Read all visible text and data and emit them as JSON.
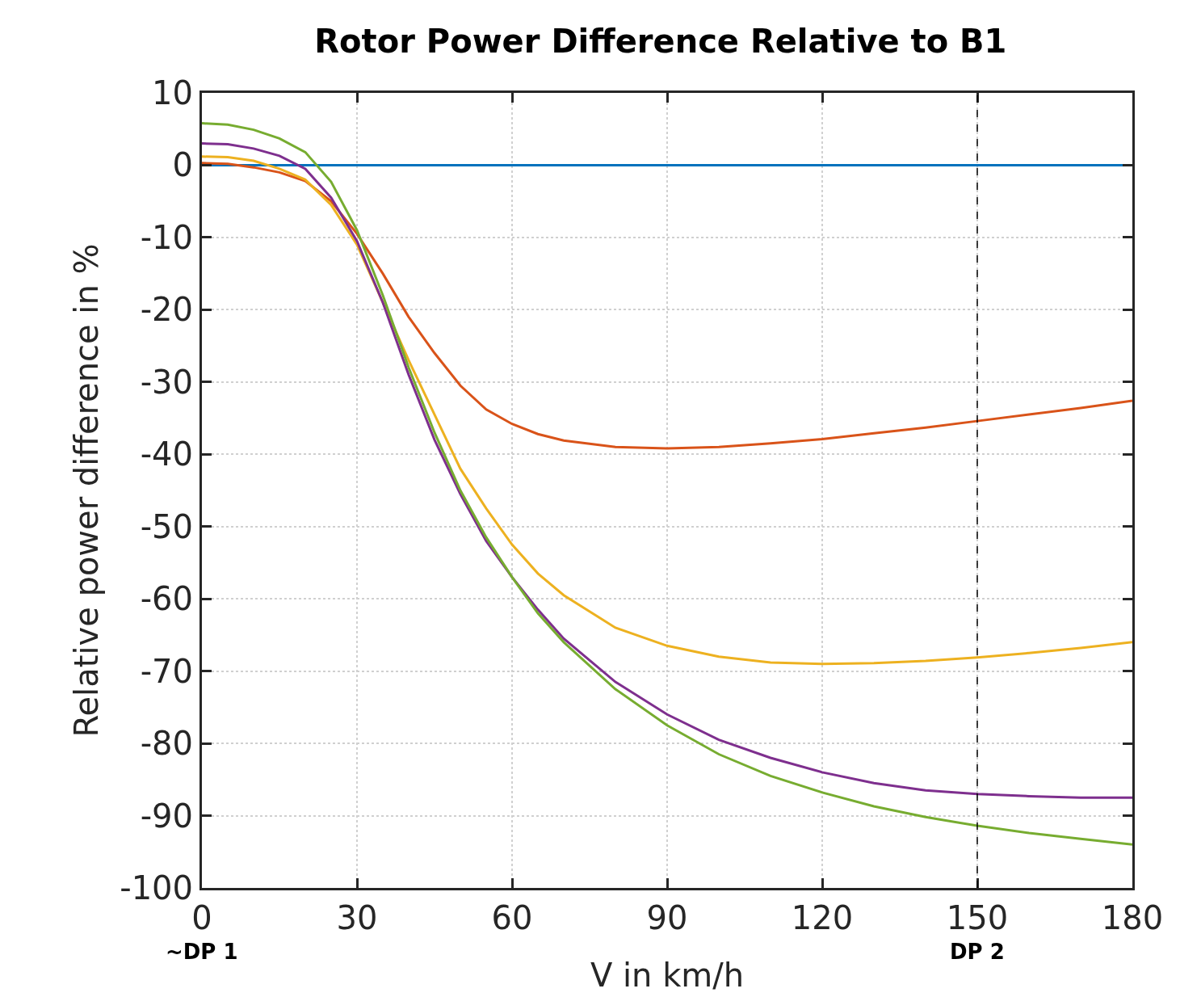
{
  "chart_data": {
    "type": "line",
    "title": "Rotor Power Difference Relative to B1",
    "xlabel": "V in km/h",
    "ylabel": "Relative power difference in %",
    "xlim": [
      0,
      180
    ],
    "xticks": [
      0,
      30,
      60,
      90,
      120,
      150,
      180
    ],
    "ylim": [
      -100,
      10
    ],
    "yticks": [
      10,
      0,
      -10,
      -20,
      -30,
      -40,
      -50,
      -60,
      -70,
      -80,
      -90,
      -100
    ],
    "grid": true,
    "marker": "none",
    "line_style": "solid",
    "ref_lines": [
      {
        "axis": "x",
        "value": 150,
        "color": "#000000",
        "line_style": "dashed",
        "label": "DP 2"
      }
    ],
    "annotations": [
      "~DP 1"
    ],
    "series": [
      {
        "color": "#0072bd",
        "x": [
          0,
          180
        ],
        "values": [
          0,
          0
        ]
      },
      {
        "color": "#d95319",
        "x": [
          0,
          5,
          10,
          15,
          20,
          25,
          30,
          35,
          40,
          45,
          50,
          55,
          60,
          65,
          70,
          80,
          90,
          100,
          110,
          120,
          130,
          140,
          150,
          160,
          170,
          180
        ],
        "values": [
          0.3,
          0.2,
          -0.3,
          -1,
          -2.2,
          -5,
          -9.5,
          -15,
          -21,
          -26,
          -30.5,
          -33.8,
          -35.8,
          -37.2,
          -38.1,
          -39,
          -39.2,
          -39,
          -38.5,
          -37.9,
          -37.1,
          -36.3,
          -35.4,
          -34.5,
          -33.6,
          -32.6
        ]
      },
      {
        "color": "#edb120",
        "x": [
          0,
          5,
          10,
          15,
          20,
          25,
          30,
          35,
          40,
          45,
          50,
          55,
          60,
          65,
          70,
          80,
          90,
          100,
          110,
          120,
          130,
          140,
          150,
          160,
          170,
          180
        ],
        "values": [
          1.2,
          1.1,
          0.6,
          -0.5,
          -2,
          -5.5,
          -11,
          -19,
          -27,
          -34.5,
          -42,
          -47.5,
          -52.5,
          -56.5,
          -59.5,
          -64,
          -66.5,
          -68,
          -68.8,
          -69,
          -68.9,
          -68.6,
          -68.1,
          -67.5,
          -66.8,
          -66
        ]
      },
      {
        "color": "#7e2f8e",
        "x": [
          0,
          5,
          10,
          15,
          20,
          25,
          30,
          35,
          40,
          45,
          50,
          55,
          60,
          65,
          70,
          80,
          90,
          100,
          110,
          120,
          130,
          140,
          150,
          160,
          170,
          180
        ],
        "values": [
          3,
          2.9,
          2.3,
          1.3,
          -0.5,
          -4.5,
          -10.5,
          -19,
          -29,
          -38,
          -45.5,
          -52,
          -57,
          -61.5,
          -65.5,
          -71.5,
          -76,
          -79.5,
          -82,
          -84,
          -85.5,
          -86.5,
          -87,
          -87.3,
          -87.5,
          -87.5
        ]
      },
      {
        "color": "#77ac30",
        "x": [
          0,
          5,
          10,
          15,
          20,
          25,
          30,
          35,
          40,
          45,
          50,
          55,
          60,
          65,
          70,
          80,
          90,
          100,
          110,
          120,
          130,
          140,
          150,
          160,
          170,
          180
        ],
        "values": [
          5.8,
          5.6,
          4.9,
          3.7,
          1.8,
          -2.3,
          -9,
          -18,
          -28,
          -37,
          -45,
          -51.5,
          -57,
          -62,
          -66,
          -72.5,
          -77.5,
          -81.5,
          -84.5,
          -86.8,
          -88.7,
          -90.2,
          -91.4,
          -92.4,
          -93.2,
          -94
        ]
      }
    ]
  }
}
